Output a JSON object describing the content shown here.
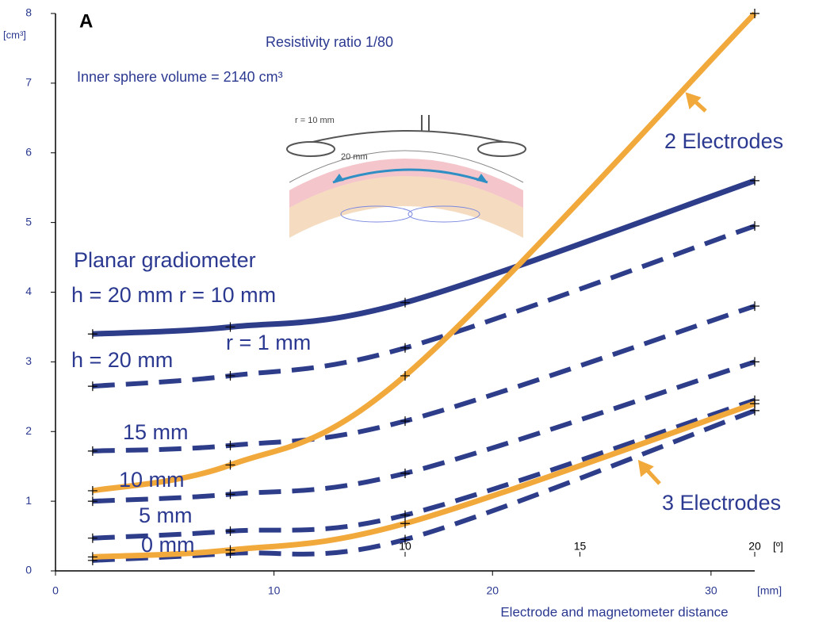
{
  "chart_data": {
    "type": "line",
    "panel_label": "A",
    "subtitle": "Resistivity ratio 1/80",
    "note": "Inner sphere volume = 2140 cm³",
    "y_unit": "[cm³]",
    "x_unit": "[mm]",
    "x2_unit": "[º]",
    "xlabel": "Electrode and magnetometer distance",
    "x": [
      1.7,
      8,
      16,
      32
    ],
    "xlim": [
      0,
      32
    ],
    "xticks": [
      0,
      10,
      20,
      30
    ],
    "x2lim": [
      0,
      20
    ],
    "x2ticks": [
      10,
      15,
      20
    ],
    "ylim": [
      0,
      8
    ],
    "yticks": [
      0,
      1,
      2,
      3,
      4,
      5,
      6,
      7,
      8
    ],
    "series": [
      {
        "name": "Planar gradiometer",
        "color": "#2e3d8a",
        "dashed": false,
        "values": [
          3.4,
          3.5,
          3.85,
          5.6
        ]
      },
      {
        "name": "r = 1 mm",
        "color": "#2e3d8a",
        "dashed": true,
        "values": [
          2.65,
          2.8,
          3.2,
          4.95
        ]
      },
      {
        "name": "15 mm",
        "color": "#2e3d8a",
        "dashed": true,
        "values": [
          1.72,
          1.8,
          2.15,
          3.8
        ]
      },
      {
        "name": "10 mm",
        "color": "#2e3d8a",
        "dashed": true,
        "values": [
          1.0,
          1.1,
          1.4,
          3.0
        ]
      },
      {
        "name": "5 mm",
        "color": "#2e3d8a",
        "dashed": true,
        "values": [
          0.47,
          0.57,
          0.8,
          2.45
        ]
      },
      {
        "name": "0 mm",
        "color": "#2e3d8a",
        "dashed": true,
        "values": [
          0.15,
          0.25,
          0.45,
          2.3
        ]
      },
      {
        "name": "2 Electrodes",
        "color": "#f2a93b",
        "dashed": false,
        "values": [
          1.15,
          1.52,
          2.8,
          8.0
        ]
      },
      {
        "name": "3 Electrodes",
        "color": "#f2a93b",
        "dashed": false,
        "values": [
          0.2,
          0.3,
          0.68,
          2.4
        ]
      }
    ],
    "annotations": [
      "h = 20 mm r = 10 mm",
      "h = 20 mm"
    ],
    "inset": {
      "radius_label": "r = 10 mm",
      "distance_label": "20 mm"
    }
  }
}
